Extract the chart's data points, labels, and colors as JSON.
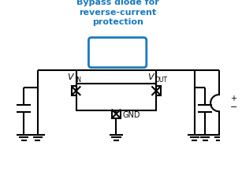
{
  "bg_color": "#ffffff",
  "line_color": "#000000",
  "blue_color": "#1a7abf",
  "label_bypass": "Bypass diode for\nreverse-current\nprotection",
  "label_vin": "V",
  "label_vin_sub": "IN",
  "label_vout": "V",
  "label_vout_sub": "OUT",
  "label_gnd": "GND",
  "figsize": [
    3.07,
    2.46
  ],
  "dpi": 100
}
